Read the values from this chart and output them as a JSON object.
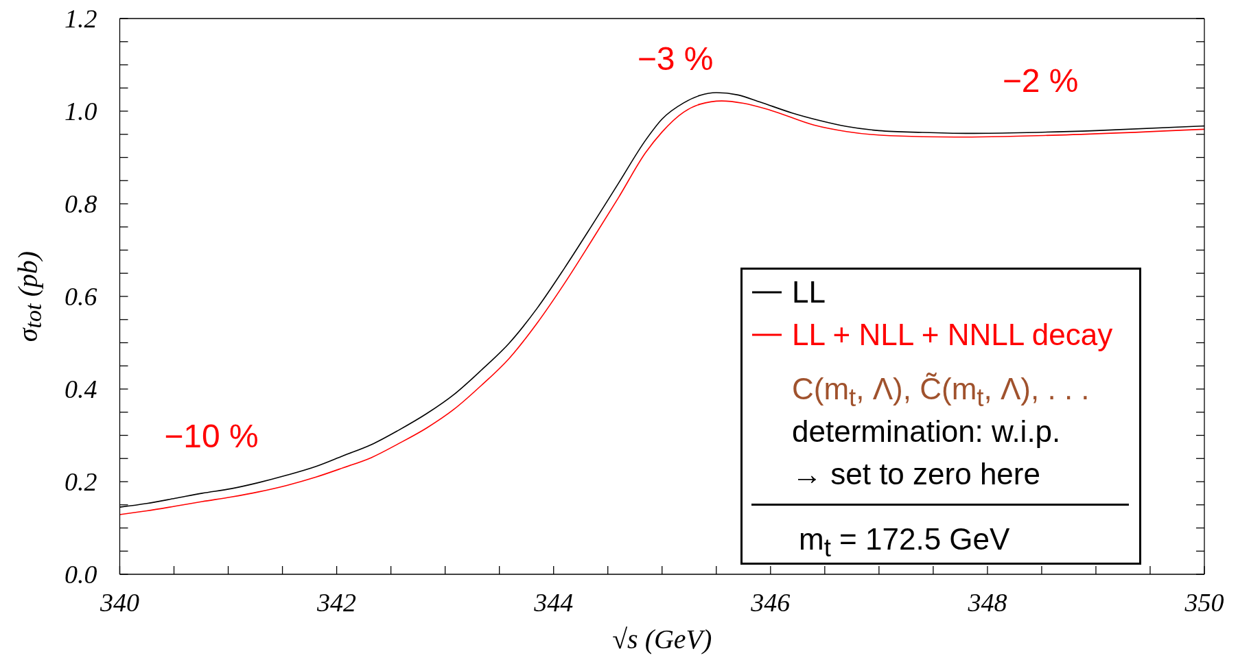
{
  "chart_data": {
    "type": "line",
    "xlabel": "√s (GeV)",
    "ylabel": "σ$_{tot}$ (pb)",
    "xlim": [
      340,
      350
    ],
    "ylim": [
      0,
      1.2
    ],
    "xticks": [
      340,
      {
        "value": 340.5,
        "label": null
      },
      {
        "value": 341,
        "label": null
      },
      {
        "value": 341.5,
        "label": null
      },
      342,
      {
        "value": 342.5,
        "label": null
      },
      {
        "value": 343,
        "label": null
      },
      {
        "value": 343.5,
        "label": null
      },
      344,
      {
        "value": 344.5,
        "label": null
      },
      {
        "value": 345,
        "label": null
      },
      {
        "value": 345.5,
        "label": null
      },
      346,
      {
        "value": 346.5,
        "label": null
      },
      {
        "value": 347,
        "label": null
      },
      {
        "value": 347.5,
        "label": null
      },
      348,
      {
        "value": 348.5,
        "label": null
      },
      {
        "value": 349,
        "label": null
      },
      {
        "value": 349.5,
        "label": null
      },
      350
    ],
    "yticks": [
      {
        "value": 0,
        "label": "0.0"
      },
      {
        "value": 0.05,
        "label": null
      },
      {
        "value": 0.1,
        "label": null
      },
      {
        "value": 0.15,
        "label": null
      },
      0.2,
      {
        "value": 0.25,
        "label": null
      },
      {
        "value": 0.3,
        "label": null
      },
      {
        "value": 0.35,
        "label": null
      },
      0.4,
      {
        "value": 0.45,
        "label": null
      },
      {
        "value": 0.5,
        "label": null
      },
      {
        "value": 0.55,
        "label": null
      },
      0.6,
      {
        "value": 0.65,
        "label": null
      },
      {
        "value": 0.7,
        "label": null
      },
      {
        "value": 0.75,
        "label": null
      },
      0.8,
      {
        "value": 0.85,
        "label": null
      },
      {
        "value": 0.9,
        "label": null
      },
      {
        "value": 0.95,
        "label": null
      },
      {
        "value": 1,
        "label": "1.0"
      },
      {
        "value": 1.05,
        "label": null
      },
      {
        "value": 1.1,
        "label": null
      },
      {
        "value": 1.15,
        "label": null
      },
      1.2
    ],
    "legend": "right",
    "annotations": [
      "−10 %",
      "−3 %",
      "−2 %",
      "C(m$_{t}$, Λ), C̃(m$_{t}$, Λ), . . .",
      "determination: w.i.p.",
      "→ set to zero here",
      "m$_{t}$ = 172.5 GeV"
    ],
    "series": [
      {
        "name": "LL",
        "color": "#000000",
        "x": [
          340,
          340.25,
          340.51,
          340.76,
          341.03,
          341.28,
          341.54,
          341.81,
          342.06,
          342.32,
          342.57,
          342.83,
          343.08,
          343.33,
          343.59,
          343.85,
          344.1,
          344.35,
          344.6,
          344.85,
          345,
          345.2,
          345.35,
          345.5,
          345.7,
          345.9,
          346.2,
          346.45,
          346.7,
          347,
          347.4,
          347.8,
          348.2,
          349,
          350
        ],
        "values": [
          0.145,
          0.153,
          0.164,
          0.175,
          0.185,
          0.198,
          0.214,
          0.233,
          0.256,
          0.28,
          0.311,
          0.347,
          0.388,
          0.44,
          0.499,
          0.575,
          0.661,
          0.752,
          0.845,
          0.938,
          0.983,
          1.018,
          1.034,
          1.04,
          1.035,
          1.02,
          0.996,
          0.98,
          0.967,
          0.958,
          0.954,
          0.952,
          0.953,
          0.958,
          0.968
        ]
      },
      {
        "name": "LL + NLL + NNLL decay",
        "color": "#ff0000",
        "x": [
          340,
          340.25,
          340.51,
          340.76,
          341.03,
          341.28,
          341.54,
          341.81,
          342.06,
          342.32,
          342.57,
          342.83,
          343.08,
          343.33,
          343.59,
          343.85,
          344.1,
          344.35,
          344.6,
          344.85,
          345,
          345.2,
          345.35,
          345.55,
          345.75,
          346,
          346.4,
          346.7,
          347.1,
          347.7,
          348.6,
          350
        ],
        "values": [
          0.129,
          0.137,
          0.147,
          0.157,
          0.167,
          0.178,
          0.192,
          0.21,
          0.23,
          0.252,
          0.282,
          0.316,
          0.356,
          0.407,
          0.466,
          0.543,
          0.628,
          0.72,
          0.814,
          0.911,
          0.955,
          0.998,
          1.015,
          1.022,
          1.017,
          1.002,
          0.97,
          0.956,
          0.947,
          0.944,
          0.948,
          0.961
        ]
      }
    ]
  }
}
